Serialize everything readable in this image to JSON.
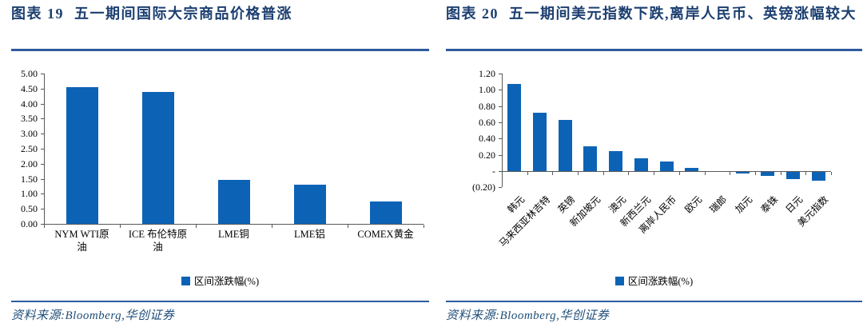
{
  "colors": {
    "bar": "#0C63B6",
    "title_text": "#1C3F70",
    "rule": "#2E5B9F",
    "source_text": "#1F4E79",
    "axis": "#595959"
  },
  "panels": [
    {
      "figure_label": "图表 19",
      "title": "五一期间国际大宗商品价格普涨",
      "legend_label": "区间涨跌幅(%)",
      "source": "资料来源:Bloomberg,华创证券"
    },
    {
      "figure_label": "图表 20",
      "title": "五一期间美元指数下跌,离岸人民币、英镑涨幅较大",
      "legend_label": "区间涨跌幅(%)",
      "source": "资料来源:Bloomberg,华创证券"
    }
  ],
  "chart_data": [
    {
      "type": "bar",
      "title": "图表 19 五一期间国际大宗商品价格普涨",
      "categories": [
        "NYM WTI原\n油",
        "ICE 布伦特原\n油",
        "LME铜",
        "LME铝",
        "COMEX黄金"
      ],
      "values": [
        4.55,
        4.4,
        1.45,
        1.3,
        0.75
      ],
      "xlabel": "",
      "ylabel": "",
      "ylim": [
        0.0,
        5.0
      ],
      "ytick_step": 0.5,
      "ytick_labels": [
        "5.00",
        "4.50",
        "4.00",
        "3.50",
        "3.00",
        "2.50",
        "2.00",
        "1.50",
        "1.00",
        "0.50",
        "0.00"
      ],
      "legend": [
        "区间涨跌幅(%)"
      ],
      "legend_position": "bottom",
      "grid": false,
      "bar_color": "#0C63B6"
    },
    {
      "type": "bar",
      "title": "图表 20 五一期间美元指数下跌,离岸人民币、英镑涨幅较大",
      "categories": [
        "韩元",
        "马来西亚林吉特",
        "英镑",
        "新加坡元",
        "澳元",
        "新西兰元",
        "离岸人民币",
        "欧元",
        "瑞郎",
        "加元",
        "泰铢",
        "日元",
        "美元指数"
      ],
      "values": [
        1.07,
        0.72,
        0.63,
        0.31,
        0.25,
        0.16,
        0.12,
        0.04,
        0.0,
        -0.02,
        -0.05,
        -0.09,
        -0.11
      ],
      "xlabel": "",
      "ylabel": "",
      "ylim": [
        -0.2,
        1.2
      ],
      "ytick_step": 0.2,
      "ytick_labels": [
        "1.20",
        "1.00",
        "0.80",
        "0.60",
        "0.40",
        "0.20",
        "-",
        "(0.20)"
      ],
      "legend": [
        "区间涨跌幅(%)"
      ],
      "legend_position": "bottom",
      "grid": false,
      "bar_color": "#0C63B6"
    }
  ]
}
